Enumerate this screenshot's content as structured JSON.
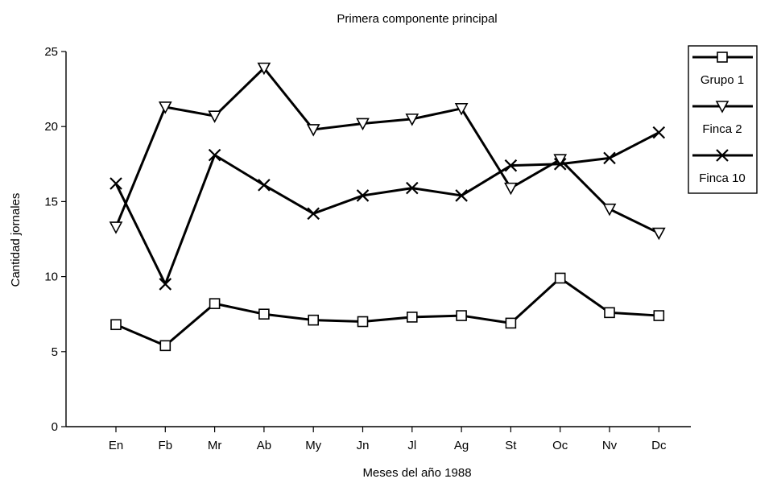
{
  "chart_data": {
    "type": "line",
    "title": "Primera componente principal",
    "xlabel": "Meses del año 1988",
    "ylabel": "Cantidad jornales",
    "ylim": [
      0,
      25
    ],
    "yticks": [
      "0",
      "5",
      "10",
      "15",
      "20",
      "25"
    ],
    "categories": [
      "En",
      "Fb",
      "Mr",
      "Ab",
      "My",
      "Jn",
      "Jl",
      "Ag",
      "St",
      "Oc",
      "Nv",
      "Dc"
    ],
    "grid": false,
    "legend_position": "top-right",
    "series": [
      {
        "name": "Grupo 1",
        "marker": "square",
        "values": [
          6.8,
          5.4,
          8.2,
          7.5,
          7.1,
          7.0,
          7.3,
          7.4,
          6.9,
          9.9,
          7.6,
          7.4
        ]
      },
      {
        "name": "Finca 2",
        "marker": "triangle-down",
        "values": [
          13.3,
          21.3,
          20.7,
          23.9,
          19.8,
          20.2,
          20.5,
          21.2,
          15.9,
          17.8,
          14.5,
          12.9
        ]
      },
      {
        "name": "Finca 10",
        "marker": "x",
        "values": [
          16.2,
          9.5,
          18.1,
          16.1,
          14.2,
          15.4,
          15.9,
          15.4,
          17.4,
          17.5,
          17.9,
          19.6
        ]
      }
    ]
  }
}
